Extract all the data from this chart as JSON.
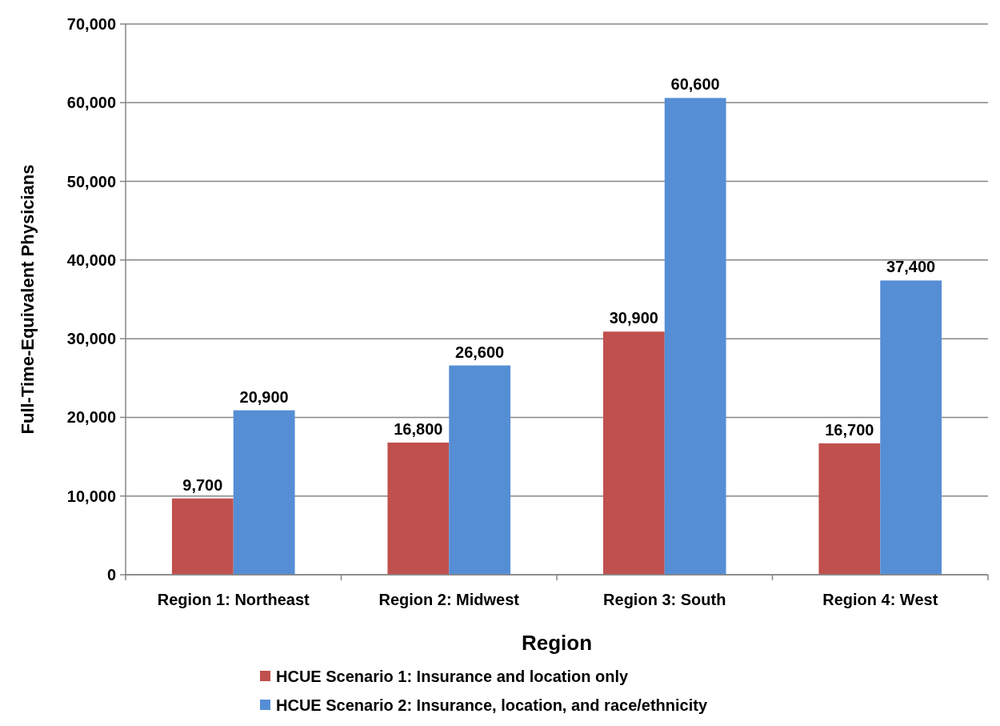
{
  "chart_data": {
    "type": "bar",
    "xlabel": "Region",
    "ylabel": "Full-Time-Equivalent Physicians",
    "categories": [
      "Region 1: Northeast",
      "Region 2: Midwest",
      "Region 3: South",
      "Region 4: West"
    ],
    "series": [
      {
        "name": "HCUE Scenario 1: Insurance and location only",
        "color": "#c0504d",
        "values": [
          9700,
          16800,
          30900,
          16700
        ],
        "value_labels": [
          "9,700",
          "16,800",
          "30,900",
          "16,700"
        ]
      },
      {
        "name": "HCUE Scenario 2: Insurance, location, and race/ethnicity",
        "color": "#558ed5",
        "values": [
          20900,
          26600,
          60600,
          37400
        ],
        "value_labels": [
          "20,900",
          "26,600",
          "60,600",
          "37,400"
        ]
      }
    ],
    "ylim": [
      0,
      70000
    ],
    "yticks": [
      {
        "value": 0,
        "label": "0"
      },
      {
        "value": 10000,
        "label": "10,000"
      },
      {
        "value": 20000,
        "label": "20,000"
      },
      {
        "value": 30000,
        "label": "30,000"
      },
      {
        "value": 40000,
        "label": "40,000"
      },
      {
        "value": 50000,
        "label": "50,000"
      },
      {
        "value": 60000,
        "label": "60,000"
      },
      {
        "value": 70000,
        "label": "70,000"
      }
    ],
    "grid": "y",
    "legend": "bottom"
  }
}
